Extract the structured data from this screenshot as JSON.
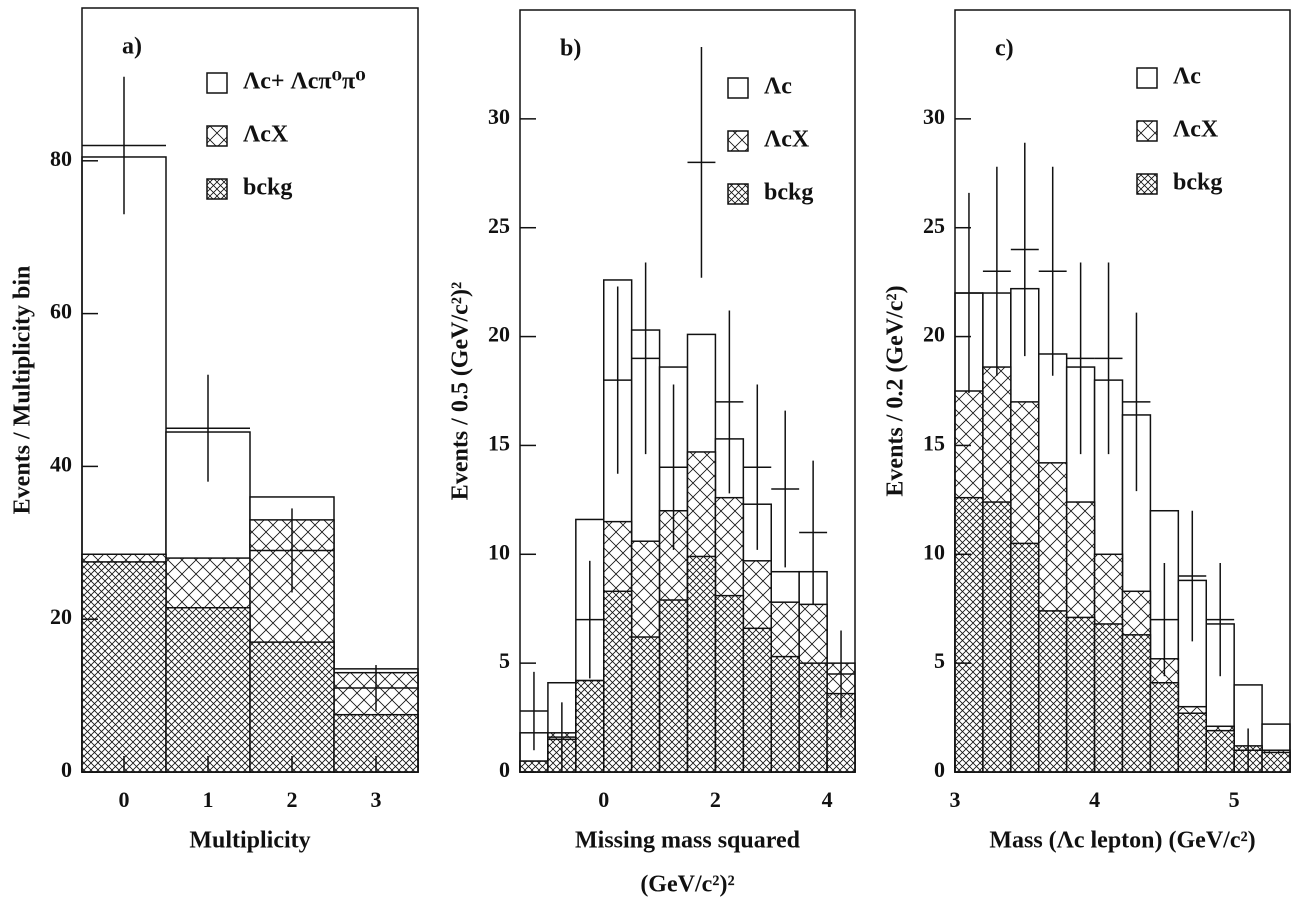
{
  "chart_data": [
    {
      "type": "histogram",
      "label": "a)",
      "ylabel": "Events / Multiplicity bin",
      "xlabel": "Multiplicity",
      "bins": [
        -0.5,
        0.5,
        1.5,
        2.5,
        3.5
      ],
      "xlim": [
        -0.5,
        3.5
      ],
      "xticks": [
        0,
        1,
        2,
        3
      ],
      "ylim": [
        0,
        100
      ],
      "yticks": [
        0,
        20,
        40,
        60,
        80
      ],
      "legend": "upper right",
      "series": [
        {
          "name": "Λc+ Λcπ⁰π⁰",
          "pattern": "none",
          "values": [
            80.5,
            44.5,
            36,
            13.5
          ]
        },
        {
          "name": "ΛcX",
          "pattern": "sparse",
          "values": [
            28.5,
            28,
            33,
            13
          ]
        },
        {
          "name": "bckg",
          "pattern": "dense",
          "values": [
            27.5,
            21.5,
            17,
            7.5
          ]
        }
      ],
      "data": {
        "x": [
          0,
          1,
          2,
          3
        ],
        "xerr": 0.5,
        "values": [
          82,
          45,
          29,
          11
        ],
        "errors": [
          9,
          7,
          5.5,
          3
        ]
      }
    },
    {
      "type": "histogram",
      "label": "b)",
      "ylabel": "Events / 0.5  (GeV/c²)²",
      "xlabel": [
        "Missing mass squared",
        "(GeV/c²)²"
      ],
      "bins": [
        -1.5,
        -1,
        -0.5,
        0,
        0.5,
        1,
        1.5,
        2,
        2.5,
        3,
        3.5,
        4,
        4.5
      ],
      "xlim": [
        -1.5,
        4.5
      ],
      "xticks": [
        0,
        2,
        4
      ],
      "ylim": [
        0,
        35
      ],
      "yticks": [
        0,
        5,
        10,
        15,
        20,
        25,
        30
      ],
      "legend": "upper right",
      "series": [
        {
          "name": "Λc",
          "pattern": "none",
          "values": [
            1.8,
            4.1,
            11.6,
            22.6,
            20.3,
            18.6,
            20.1,
            15.3,
            12.3,
            9.2,
            9.2,
            3.2
          ]
        },
        {
          "name": "ΛcX",
          "pattern": "sparse",
          "values": [
            0.5,
            1.8,
            4.2,
            11.5,
            10.6,
            12,
            14.7,
            12.6,
            9.7,
            7.8,
            7.7,
            5
          ]
        },
        {
          "name": "bckg",
          "pattern": "dense",
          "values": [
            0.5,
            1.5,
            4.2,
            8.3,
            6.2,
            7.9,
            9.9,
            8.1,
            6.6,
            5.3,
            5,
            3.6
          ]
        }
      ],
      "data": {
        "x": [
          -1.25,
          -0.75,
          -0.25,
          0.25,
          0.75,
          1.25,
          1.75,
          2.25,
          2.75,
          3.25,
          3.75,
          4.25
        ],
        "xerr": 0.25,
        "values": [
          2.8,
          1.6,
          7,
          18,
          19,
          14,
          28,
          17,
          14,
          13,
          11,
          4.5
        ],
        "errors": [
          1.8,
          1.6,
          2.7,
          4.3,
          4.4,
          3.8,
          5.3,
          4.2,
          3.8,
          3.6,
          3.3,
          2
        ]
      }
    },
    {
      "type": "histogram",
      "label": "c)",
      "ylabel": "Events / 0.2  (GeV/c²)",
      "xlabel": "Mass (Λc lepton) (GeV/c²)",
      "bins": [
        3,
        3.2,
        3.4,
        3.6,
        3.8,
        4,
        4.2,
        4.4,
        4.6,
        4.8,
        5,
        5.2,
        5.4
      ],
      "xlim": [
        3,
        5.4
      ],
      "xticks": [
        3,
        4,
        5
      ],
      "ylim": [
        0,
        35
      ],
      "yticks": [
        0,
        5,
        10,
        15,
        20,
        25,
        30
      ],
      "legend": "upper right",
      "series": [
        {
          "name": "Λc",
          "pattern": "none",
          "values": [
            22,
            22,
            22.2,
            19.2,
            18.6,
            18,
            16.4,
            12,
            8.8,
            6.8,
            4,
            2.2
          ]
        },
        {
          "name": "ΛcX",
          "pattern": "sparse",
          "values": [
            17.5,
            18.6,
            17,
            14.2,
            12.4,
            10,
            8.3,
            5.2,
            3,
            2.1,
            1.1,
            1
          ]
        },
        {
          "name": "bckg",
          "pattern": "dense",
          "values": [
            12.6,
            12.4,
            10.5,
            7.4,
            7.1,
            6.8,
            6.3,
            4.1,
            2.7,
            1.9,
            1.2,
            0.9
          ]
        }
      ],
      "data": {
        "x": [
          3.1,
          3.3,
          3.5,
          3.7,
          3.9,
          4.1,
          4.3,
          4.5,
          4.7,
          4.9,
          5.1
        ],
        "xerr": 0.1,
        "values": [
          22,
          23,
          24,
          23,
          19,
          19,
          17,
          7,
          9,
          7,
          1
        ],
        "errors": [
          4.6,
          4.8,
          4.9,
          4.8,
          4.4,
          4.4,
          4.1,
          2.6,
          3,
          2.6,
          1
        ]
      }
    }
  ]
}
